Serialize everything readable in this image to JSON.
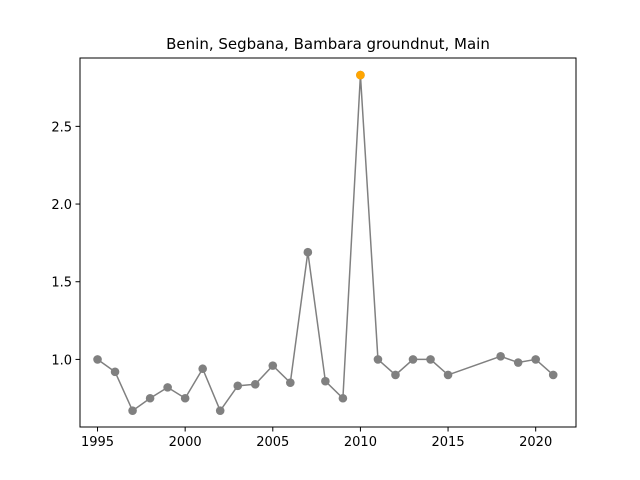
{
  "chart_data": {
    "type": "line",
    "title": "Benin, Segbana, Bambara groundnut, Main",
    "xlabel": "",
    "ylabel": "",
    "xlim": [
      1994,
      2022.3
    ],
    "ylim": [
      0.565,
      2.94
    ],
    "xticks": [
      1995,
      2000,
      2005,
      2010,
      2015,
      2020
    ],
    "yticks": [
      1.0,
      1.5,
      2.0,
      2.5
    ],
    "ytick_labels": [
      "1.0",
      "1.5",
      "2.0",
      "2.5"
    ],
    "grid": false,
    "line_color": "#808080",
    "highlight_color": "#ffa500",
    "series": [
      {
        "x": [
          1995,
          1996,
          1997,
          1998,
          1999,
          2000,
          2001,
          2002,
          2003,
          2004,
          2005,
          2006,
          2007,
          2008,
          2009,
          2010,
          2011,
          2012,
          2013,
          2014,
          2015,
          2018,
          2019,
          2020,
          2021
        ],
        "y": [
          1.0,
          0.92,
          0.67,
          0.75,
          0.82,
          0.75,
          0.94,
          0.67,
          0.83,
          0.84,
          0.96,
          0.85,
          1.69,
          0.86,
          0.75,
          2.83,
          1.0,
          0.9,
          1.0,
          1.0,
          0.9,
          1.02,
          0.98,
          1.0,
          0.9
        ]
      }
    ],
    "highlight_points": [
      {
        "x": 2010,
        "y": 2.83
      }
    ]
  }
}
